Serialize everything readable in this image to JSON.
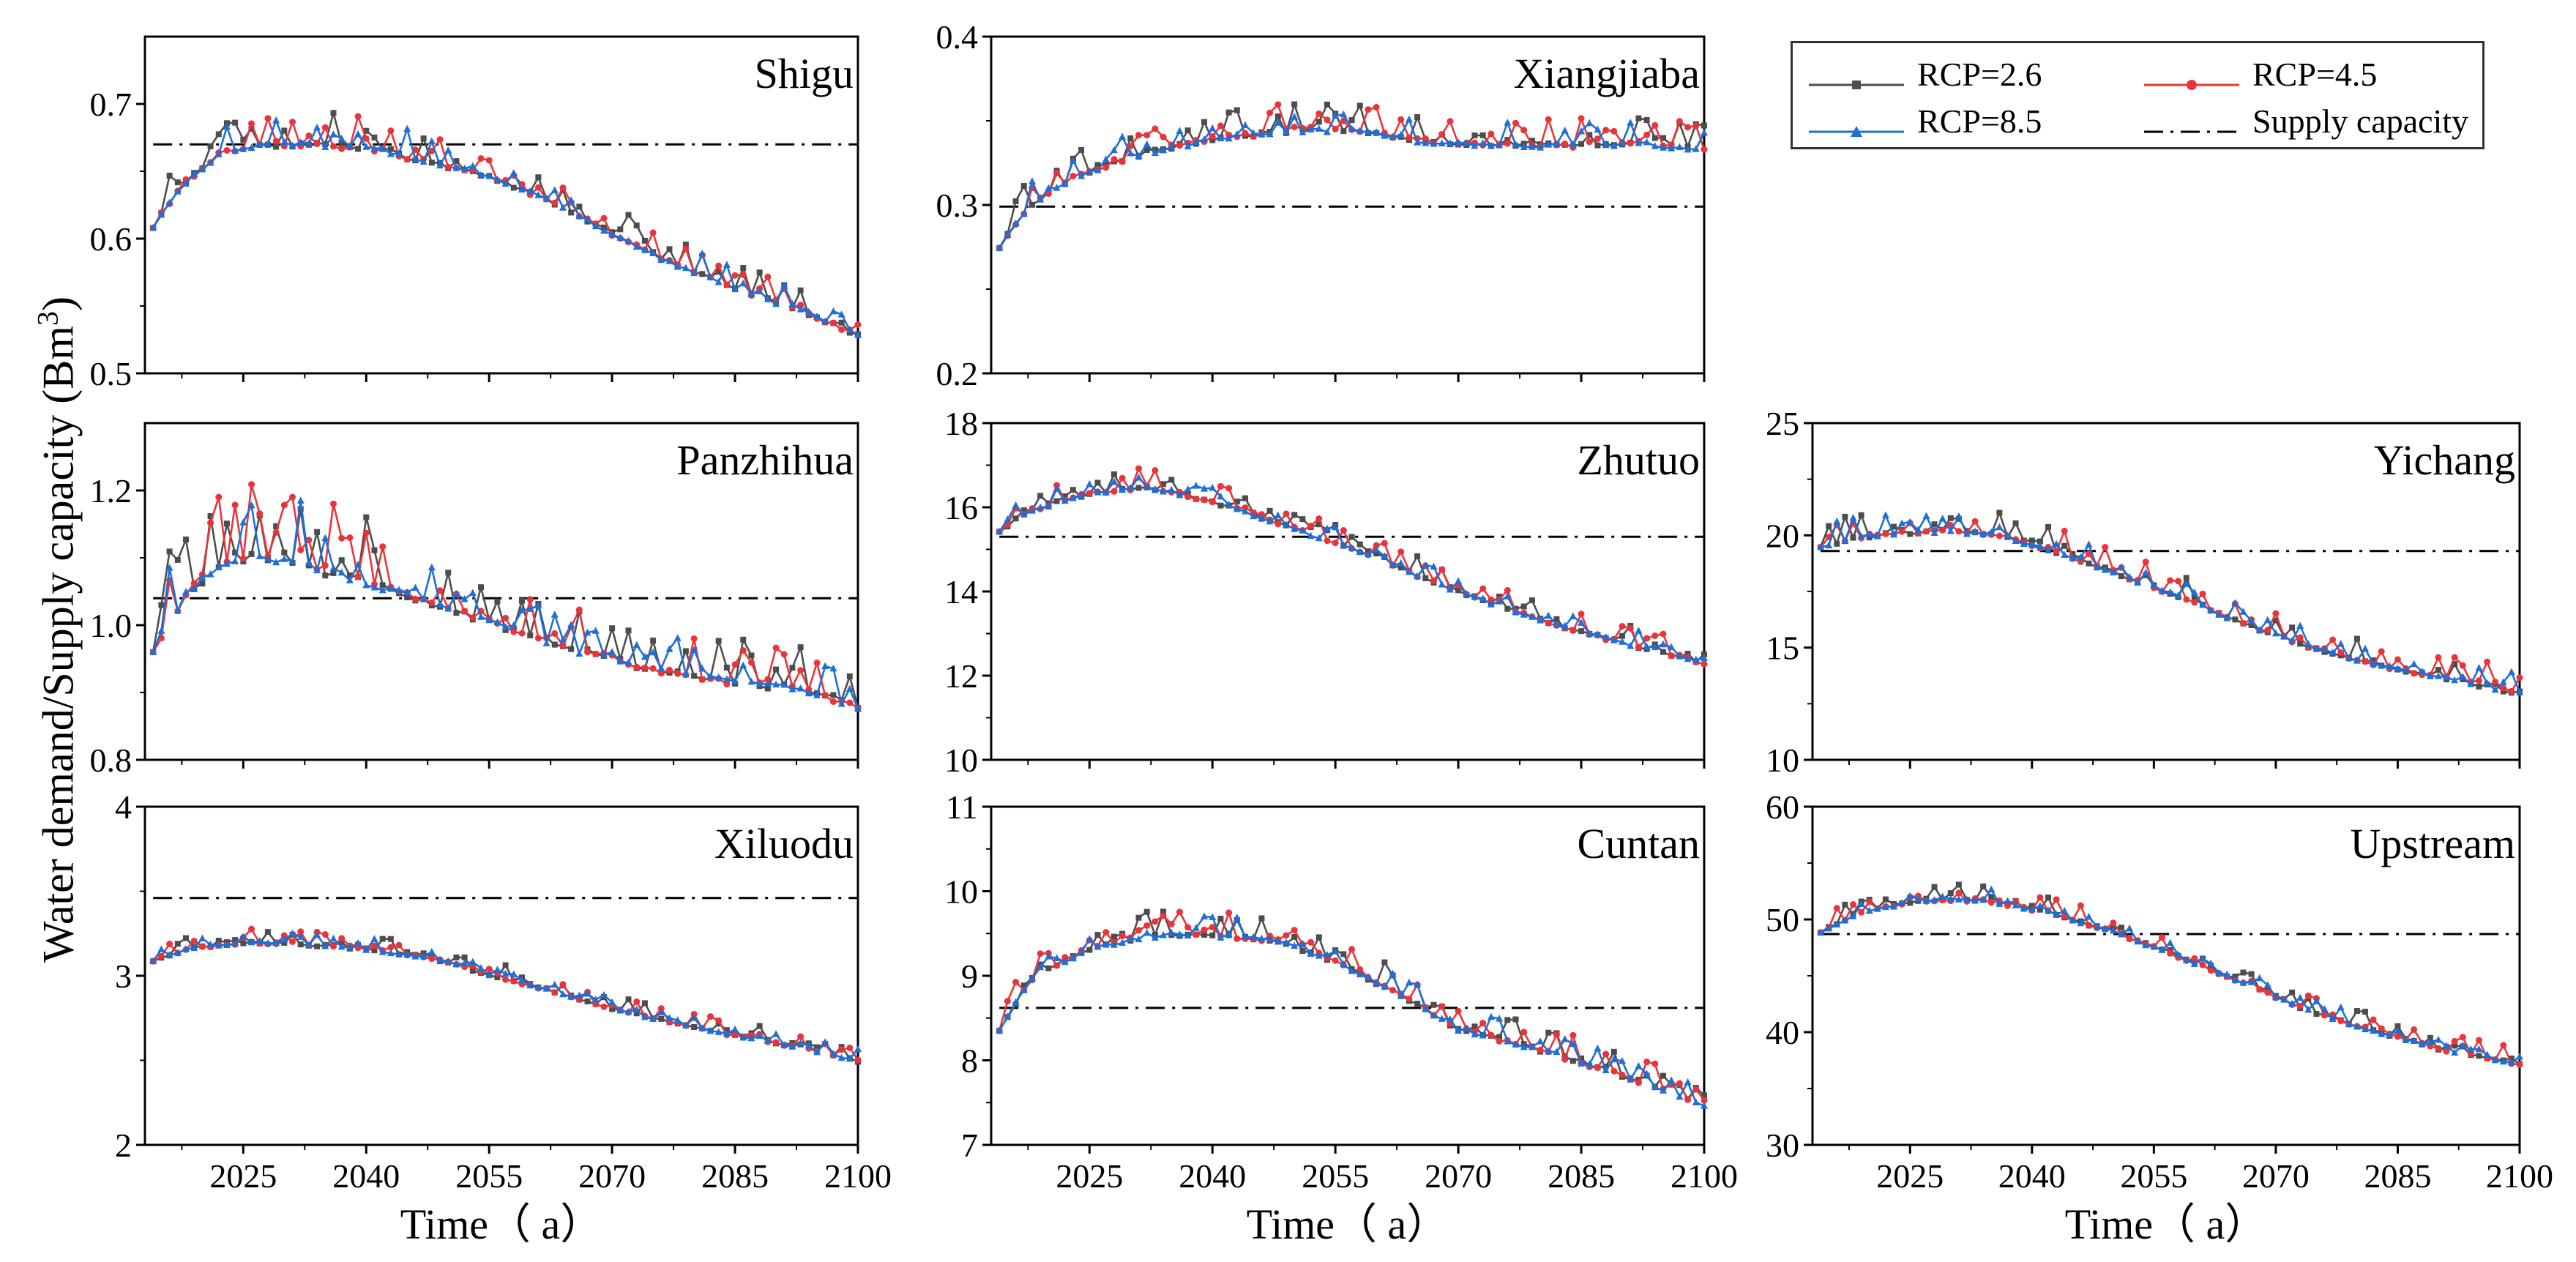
{
  "figure": {
    "ylabel": "Water demand/Supply capacity (Bm",
    "ylabel_sup": "3",
    "ylabel_close": ")",
    "xlabel": "Time（ a）"
  },
  "legend": {
    "items": [
      {
        "label": "RCP=2.6",
        "color": "#4d4d4d",
        "marker": "square",
        "dash": "solid"
      },
      {
        "label": "RCP=4.5",
        "color": "#e8353b",
        "marker": "circle",
        "dash": "solid"
      },
      {
        "label": "RCP=8.5",
        "color": "#1f6fd6",
        "marker": "triangle",
        "dash": "solid"
      },
      {
        "label": "Supply capacity",
        "color": "#000000",
        "marker": "none",
        "dash": "dashdot"
      }
    ]
  },
  "chart_data": [
    {
      "type": "line",
      "title": "Shigu",
      "xlim": [
        2013,
        2100
      ],
      "ylim": [
        0.5,
        0.75
      ],
      "yticks": [
        "0.5",
        "0.6",
        "0.7"
      ],
      "xticks": [
        "2025",
        "2040",
        "2055",
        "2070",
        "2085",
        "2100"
      ],
      "show_xlabels": false,
      "supply": 0.67,
      "trend": [
        [
          2013,
          0.6
        ],
        [
          2018,
          0.64
        ],
        [
          2022,
          0.66
        ],
        [
          2028,
          0.668
        ],
        [
          2033,
          0.668
        ],
        [
          2040,
          0.665
        ],
        [
          2048,
          0.655
        ],
        [
          2055,
          0.645
        ],
        [
          2063,
          0.625
        ],
        [
          2070,
          0.602
        ],
        [
          2078,
          0.578
        ],
        [
          2085,
          0.562
        ],
        [
          2093,
          0.545
        ],
        [
          2100,
          0.527
        ]
      ],
      "noise": [
        {
          "start": 2014,
          "end": 2045,
          "amp": 0.03
        },
        {
          "start": 2045,
          "end": 2100,
          "amp": 0.022
        }
      ]
    },
    {
      "type": "line",
      "title": "Xiangjiaba",
      "xlim": [
        2013,
        2100
      ],
      "ylim": [
        0.2,
        0.4
      ],
      "yticks": [
        "0.2",
        "0.3",
        "0.4"
      ],
      "xticks": [
        "2025",
        "2040",
        "2055",
        "2070",
        "2085",
        "2100"
      ],
      "show_xlabels": false,
      "supply": 0.299,
      "trend": [
        [
          2013,
          0.268
        ],
        [
          2018,
          0.3
        ],
        [
          2023,
          0.315
        ],
        [
          2030,
          0.327
        ],
        [
          2040,
          0.338
        ],
        [
          2050,
          0.343
        ],
        [
          2058,
          0.343
        ],
        [
          2066,
          0.336
        ],
        [
          2075,
          0.334
        ],
        [
          2085,
          0.334
        ],
        [
          2093,
          0.335
        ],
        [
          2100,
          0.331
        ]
      ],
      "noise": [
        {
          "start": 2014,
          "end": 2100,
          "amp": 0.018
        }
      ]
    },
    {
      "type": "line",
      "title": "Panzhihua",
      "xlim": [
        2013,
        2100
      ],
      "ylim": [
        0.8,
        1.3
      ],
      "yticks": [
        "0.8",
        "1.0",
        "1.2"
      ],
      "xticks": [
        "2025",
        "2040",
        "2055",
        "2070",
        "2085",
        "2100"
      ],
      "show_xlabels": false,
      "supply": 1.04,
      "trend": [
        [
          2013,
          0.94
        ],
        [
          2018,
          1.04
        ],
        [
          2024,
          1.09
        ],
        [
          2030,
          1.09
        ],
        [
          2036,
          1.07
        ],
        [
          2045,
          1.04
        ],
        [
          2055,
          1.0
        ],
        [
          2065,
          0.96
        ],
        [
          2075,
          0.93
        ],
        [
          2085,
          0.91
        ],
        [
          2093,
          0.9
        ],
        [
          2100,
          0.875
        ]
      ],
      "noise": [
        {
          "start": 2014,
          "end": 2040,
          "amp": 0.12
        },
        {
          "start": 2040,
          "end": 2100,
          "amp": 0.07
        }
      ]
    },
    {
      "type": "line",
      "title": "Zhutuo",
      "xlim": [
        2013,
        2100
      ],
      "ylim": [
        10,
        18
      ],
      "yticks": [
        "10",
        "12",
        "14",
        "16",
        "18"
      ],
      "xticks": [
        "2025",
        "2040",
        "2055",
        "2070",
        "2085",
        "2100"
      ],
      "show_xlabels": false,
      "supply": 15.3,
      "trend": [
        [
          2013,
          15.3
        ],
        [
          2018,
          15.9
        ],
        [
          2025,
          16.3
        ],
        [
          2032,
          16.45
        ],
        [
          2040,
          16.1
        ],
        [
          2048,
          15.6
        ],
        [
          2055,
          15.1
        ],
        [
          2063,
          14.5
        ],
        [
          2070,
          13.95
        ],
        [
          2078,
          13.4
        ],
        [
          2085,
          13.0
        ],
        [
          2093,
          12.6
        ],
        [
          2100,
          12.25
        ]
      ],
      "noise": [
        {
          "start": 2014,
          "end": 2100,
          "amp": 0.5
        }
      ]
    },
    {
      "type": "line",
      "title": "Yichang",
      "xlim": [
        2013,
        2100
      ],
      "ylim": [
        10,
        25
      ],
      "yticks": [
        "10",
        "15",
        "20",
        "25"
      ],
      "xticks": [
        "2025",
        "2040",
        "2055",
        "2070",
        "2085",
        "2100"
      ],
      "show_xlabels": false,
      "supply": 19.3,
      "trend": [
        [
          2013,
          19.4
        ],
        [
          2020,
          19.9
        ],
        [
          2028,
          20.1
        ],
        [
          2035,
          20.0
        ],
        [
          2042,
          19.3
        ],
        [
          2050,
          18.3
        ],
        [
          2058,
          17.2
        ],
        [
          2066,
          16.0
        ],
        [
          2074,
          15.0
        ],
        [
          2082,
          14.2
        ],
        [
          2090,
          13.6
        ],
        [
          2100,
          12.9
        ]
      ],
      "noise": [
        {
          "start": 2014,
          "end": 2100,
          "amp": 1.2
        }
      ]
    },
    {
      "type": "line",
      "title": "Xiluodu",
      "xlim": [
        2013,
        2100
      ],
      "ylim": [
        2,
        4
      ],
      "yticks": [
        "2",
        "3",
        "4"
      ],
      "xticks": [
        "2025",
        "2040",
        "2055",
        "2070",
        "2085",
        "2100"
      ],
      "show_xlabels": true,
      "supply": 3.46,
      "trend": [
        [
          2013,
          3.07
        ],
        [
          2018,
          3.15
        ],
        [
          2025,
          3.19
        ],
        [
          2032,
          3.18
        ],
        [
          2040,
          3.15
        ],
        [
          2048,
          3.1
        ],
        [
          2055,
          3.0
        ],
        [
          2063,
          2.9
        ],
        [
          2070,
          2.8
        ],
        [
          2078,
          2.71
        ],
        [
          2085,
          2.64
        ],
        [
          2093,
          2.57
        ],
        [
          2100,
          2.49
        ]
      ],
      "noise": [
        {
          "start": 2014,
          "end": 2100,
          "amp": 0.09
        }
      ]
    },
    {
      "type": "line",
      "title": "Cuntan",
      "xlim": [
        2013,
        2100
      ],
      "ylim": [
        7,
        11
      ],
      "yticks": [
        "7",
        "8",
        "9",
        "10",
        "11"
      ],
      "xticks": [
        "2025",
        "2040",
        "2055",
        "2070",
        "2085",
        "2100"
      ],
      "show_xlabels": true,
      "supply": 8.62,
      "trend": [
        [
          2013,
          8.2
        ],
        [
          2018,
          8.95
        ],
        [
          2025,
          9.3
        ],
        [
          2032,
          9.45
        ],
        [
          2040,
          9.45
        ],
        [
          2048,
          9.4
        ],
        [
          2055,
          9.15
        ],
        [
          2063,
          8.75
        ],
        [
          2070,
          8.35
        ],
        [
          2078,
          8.15
        ],
        [
          2085,
          7.95
        ],
        [
          2093,
          7.7
        ],
        [
          2100,
          7.45
        ]
      ],
      "noise": [
        {
          "start": 2014,
          "end": 2100,
          "amp": 0.32
        }
      ]
    },
    {
      "type": "line",
      "title": "Upstream",
      "xlim": [
        2013,
        2100
      ],
      "ylim": [
        30,
        60
      ],
      "yticks": [
        "30",
        "40",
        "50",
        "60"
      ],
      "xticks": [
        "2025",
        "2040",
        "2055",
        "2070",
        "2085",
        "2100"
      ],
      "show_xlabels": true,
      "supply": 48.7,
      "trend": [
        [
          2013,
          48.5
        ],
        [
          2019,
          50.5
        ],
        [
          2026,
          51.6
        ],
        [
          2034,
          51.6
        ],
        [
          2042,
          50.5
        ],
        [
          2050,
          48.8
        ],
        [
          2058,
          46.6
        ],
        [
          2066,
          44.2
        ],
        [
          2074,
          41.8
        ],
        [
          2082,
          40.0
        ],
        [
          2090,
          38.4
        ],
        [
          2100,
          37.0
        ]
      ],
      "noise": [
        {
          "start": 2014,
          "end": 2100,
          "amp": 1.6
        }
      ]
    }
  ]
}
